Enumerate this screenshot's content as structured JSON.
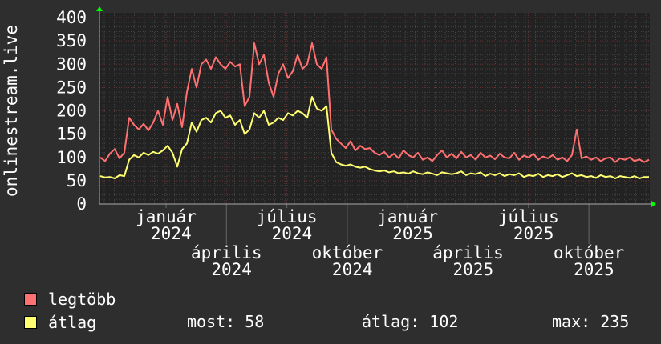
{
  "chart_data": {
    "type": "line",
    "ylabel": "onlinestream.live",
    "ylim": [
      0,
      400
    ],
    "y_ticks": [
      "0",
      "50",
      "100",
      "150",
      "200",
      "250",
      "300",
      "350",
      "400"
    ],
    "x_ticks": [
      "január 2024",
      "április 2024",
      "július 2024",
      "október 2024",
      "január 2025",
      "április 2025",
      "július 2025",
      "október 2025"
    ],
    "grid": true,
    "legend_placement": "bottom-left",
    "series": [
      {
        "name": "legtöbb",
        "color": "#ff7070",
        "values": [
          100,
          92,
          108,
          118,
          98,
          110,
          185,
          170,
          160,
          172,
          158,
          175,
          200,
          170,
          230,
          180,
          215,
          165,
          240,
          290,
          250,
          300,
          310,
          290,
          315,
          300,
          290,
          305,
          295,
          300,
          210,
          230,
          345,
          300,
          320,
          260,
          230,
          280,
          300,
          270,
          285,
          320,
          290,
          300,
          345,
          300,
          290,
          315,
          160,
          140,
          130,
          120,
          135,
          115,
          125,
          118,
          120,
          110,
          105,
          112,
          100,
          108,
          98,
          115,
          105,
          100,
          110,
          95,
          100,
          92,
          105,
          115,
          100,
          108,
          98,
          112,
          100,
          105,
          95,
          110,
          100,
          104,
          96,
          108,
          100,
          98,
          110,
          95,
          104,
          100,
          108,
          95,
          102,
          98,
          105,
          95,
          100,
          92,
          105,
          160,
          98,
          102,
          95,
          100,
          92,
          98,
          100,
          90,
          98,
          95,
          100,
          92,
          96,
          90,
          95
        ]
      },
      {
        "name": "átlag",
        "color": "#ffff70",
        "values": [
          60,
          57,
          58,
          55,
          62,
          60,
          95,
          105,
          100,
          110,
          105,
          112,
          108,
          115,
          125,
          110,
          80,
          118,
          130,
          175,
          155,
          180,
          185,
          175,
          195,
          200,
          185,
          190,
          170,
          180,
          150,
          160,
          195,
          185,
          200,
          170,
          175,
          185,
          180,
          195,
          190,
          200,
          195,
          185,
          230,
          205,
          200,
          210,
          110,
          90,
          85,
          82,
          85,
          80,
          78,
          80,
          75,
          72,
          70,
          72,
          68,
          70,
          66,
          68,
          65,
          70,
          66,
          64,
          68,
          65,
          62,
          68,
          66,
          64,
          66,
          70,
          62,
          66,
          64,
          68,
          60,
          65,
          62,
          66,
          60,
          64,
          62,
          66,
          58,
          62,
          60,
          65,
          58,
          62,
          60,
          64,
          58,
          62,
          66,
          60,
          62,
          58,
          60,
          56,
          62,
          58,
          60,
          55,
          60,
          58,
          56,
          60,
          55,
          58,
          58
        ]
      }
    ]
  },
  "legend": {
    "max_label": "legtöbb",
    "avg_label": "átlag",
    "now": "most: 58",
    "average": "átlag: 102",
    "max": "max: 235"
  }
}
